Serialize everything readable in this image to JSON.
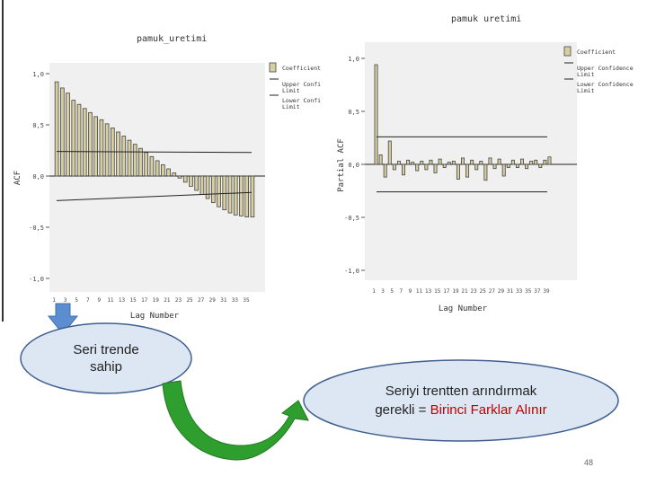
{
  "chart_data": [
    {
      "type": "bar",
      "title": "pamuk_uretimi",
      "xlabel": "Lag Number",
      "ylabel": "ACF",
      "ylim": [
        -1.0,
        1.0
      ],
      "yticks": [
        "1,0",
        "0,5",
        "0,0",
        "-0,5",
        "-1,0"
      ],
      "xticks": [
        "1",
        "3",
        "5",
        "7",
        "9",
        "11",
        "13",
        "15",
        "17",
        "19",
        "21",
        "23",
        "25",
        "27",
        "29",
        "31",
        "33",
        "35"
      ],
      "legend": [
        "Coefficient",
        "Upper Confidence Limit",
        "Lower Confidence Limit"
      ],
      "legend_lines": [
        [
          "Coefficient"
        ],
        [
          "Upper Confi",
          "Limit"
        ],
        [
          "Lower Confi",
          "Limit"
        ]
      ],
      "values": [
        0.92,
        0.86,
        0.81,
        0.74,
        0.7,
        0.66,
        0.62,
        0.58,
        0.55,
        0.51,
        0.47,
        0.43,
        0.39,
        0.35,
        0.31,
        0.27,
        0.23,
        0.19,
        0.15,
        0.11,
        0.07,
        0.03,
        -0.02,
        -0.06,
        -0.1,
        -0.14,
        -0.18,
        -0.22,
        -0.26,
        -0.3,
        -0.33,
        -0.36,
        -0.38,
        -0.39,
        -0.4,
        -0.4
      ],
      "upper_confidence": [
        0.24,
        0.23
      ],
      "lower_confidence": [
        -0.24,
        -0.16
      ]
    },
    {
      "type": "bar",
      "title": "pamuk uretimi",
      "xlabel": "Lag Number",
      "ylabel": "Partial ACF",
      "ylim": [
        -1.0,
        1.0
      ],
      "yticks": [
        "1,0",
        "0,5",
        "0,0",
        "-0,5",
        "-1,0"
      ],
      "xticks": [
        "1",
        "3",
        "5",
        "7",
        "9",
        "11",
        "13",
        "15",
        "17",
        "19",
        "21",
        "23",
        "25",
        "27",
        "29",
        "31",
        "33",
        "35",
        "37",
        "39"
      ],
      "legend": [
        "Coefficient",
        "Upper Confidence Limit",
        "Lower Confidence Limit"
      ],
      "legend_lines": [
        [
          "Coefficient"
        ],
        [
          "Upper Confidence",
          "Limit"
        ],
        [
          "Lower Confidence",
          "Limit"
        ]
      ],
      "values": [
        0.94,
        0.09,
        -0.12,
        0.22,
        -0.05,
        0.03,
        -0.1,
        0.04,
        0.02,
        -0.06,
        0.03,
        -0.05,
        0.04,
        -0.08,
        0.05,
        -0.03,
        0.02,
        0.03,
        -0.14,
        0.06,
        -0.12,
        0.04,
        -0.05,
        0.03,
        -0.15,
        0.06,
        -0.04,
        0.05,
        -0.11,
        -0.03,
        0.04,
        -0.03,
        0.05,
        -0.04,
        0.03,
        0.04,
        -0.03,
        0.04,
        0.07
      ],
      "upper_confidence": [
        0.26,
        0.26
      ],
      "lower_confidence": [
        -0.26,
        -0.26
      ]
    }
  ],
  "annotations": {
    "oval1": [
      "Seri trende",
      "sahip"
    ],
    "oval2_line1": "Seriyi trentten arındırmak",
    "oval2_prefix": "gerekli = ",
    "oval2_highlight": "Birinci Farklar Alınır",
    "page_number": "48"
  },
  "colors": {
    "plot_bg": "#f0f0f0",
    "bar_fill": "#d8cfa0",
    "bar_stroke": "#444444",
    "oval_fill": "#dde7f4",
    "oval_stroke": "#3f5f8f",
    "highlight": "#c00000",
    "arrow_blue": "#5b8dd0",
    "arrow_green": "#2e9e2e"
  }
}
